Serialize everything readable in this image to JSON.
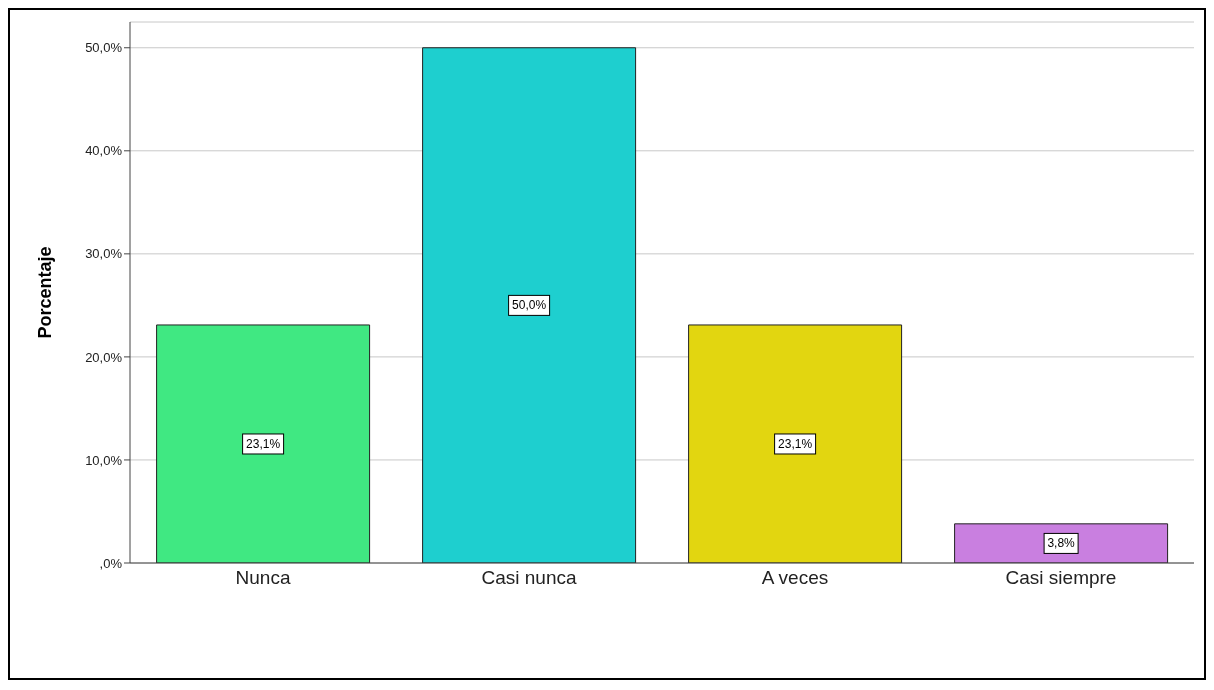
{
  "chart_data": {
    "type": "bar",
    "ylabel": "Porcentaje",
    "categories": [
      "Nunca",
      "Casi nunca",
      "A veces",
      "Casi siempre"
    ],
    "values": [
      23.1,
      50.0,
      23.1,
      3.8
    ],
    "colors": [
      "#40e882",
      "#1ecfcf",
      "#e2d610",
      "#c97fe0"
    ],
    "value_labels": [
      "23,1%",
      "50,0%",
      "23,1%",
      "3,8%"
    ],
    "ylim": [
      0,
      52.5
    ],
    "yticks": [
      {
        "value": 0,
        "label": ",0%"
      },
      {
        "value": 10,
        "label": "10,0%"
      },
      {
        "value": 20,
        "label": "20,0%"
      },
      {
        "value": 30,
        "label": "30,0%"
      },
      {
        "value": 40,
        "label": "40,0%"
      },
      {
        "value": 50,
        "label": "50,0%"
      }
    ],
    "grid": "y",
    "legend": false
  }
}
